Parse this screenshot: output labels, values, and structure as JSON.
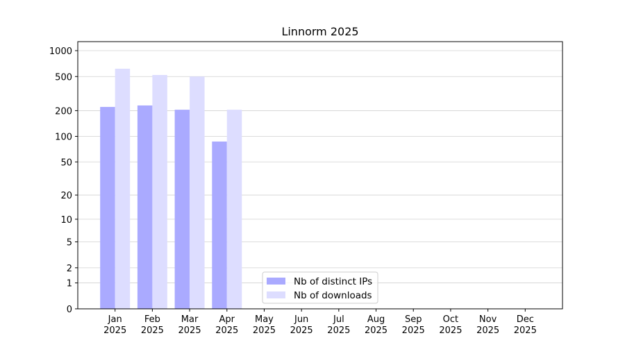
{
  "chart_data": {
    "type": "bar",
    "title": "Linnorm 2025",
    "categories": [
      "Jan\n2025",
      "Feb\n2025",
      "Mar\n2025",
      "Apr\n2025",
      "May\n2025",
      "Jun\n2025",
      "Jul\n2025",
      "Aug\n2025",
      "Sep\n2025",
      "Oct\n2025",
      "Nov\n2025",
      "Dec\n2025"
    ],
    "series": [
      {
        "name": "Nb of distinct IPs",
        "color": "#aaaaff",
        "values": [
          221,
          230,
          205,
          87,
          null,
          null,
          null,
          null,
          null,
          null,
          null,
          null
        ]
      },
      {
        "name": "Nb of downloads",
        "color": "#ddddff",
        "values": [
          616,
          521,
          500,
          205,
          null,
          null,
          null,
          null,
          null,
          null,
          null,
          null
        ]
      }
    ],
    "yscale": "log1p",
    "ylim": [
      0,
      1273
    ],
    "yticks": [
      0,
      1,
      2,
      5,
      10,
      20,
      50,
      100,
      200,
      500,
      1000
    ],
    "grid": true,
    "legend": "lower center"
  }
}
